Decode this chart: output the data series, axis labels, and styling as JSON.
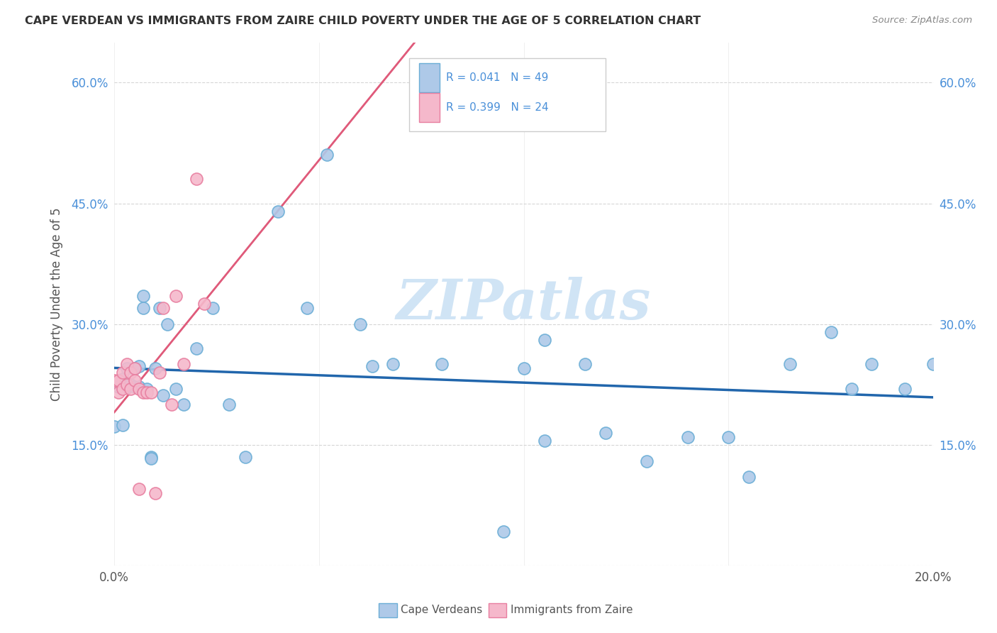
{
  "title": "CAPE VERDEAN VS IMMIGRANTS FROM ZAIRE CHILD POVERTY UNDER THE AGE OF 5 CORRELATION CHART",
  "source": "Source: ZipAtlas.com",
  "ylabel": "Child Poverty Under the Age of 5",
  "xlim": [
    0,
    0.2
  ],
  "ylim": [
    0,
    0.65
  ],
  "legend_label1": "Cape Verdeans",
  "legend_label2": "Immigrants from Zaire",
  "color_blue_face": "#aec9e8",
  "color_blue_edge": "#6baed6",
  "color_pink_face": "#f5b8cb",
  "color_pink_edge": "#e87fa0",
  "trendline_blue_color": "#2166ac",
  "trendline_pink_color": "#e05a7a",
  "trendline_dashed_color": "#d0b0c0",
  "watermark_color": "#d0e4f5",
  "blue_x": [
    0.0,
    0.001,
    0.002,
    0.002,
    0.003,
    0.003,
    0.004,
    0.005,
    0.005,
    0.006,
    0.006,
    0.007,
    0.007,
    0.008,
    0.009,
    0.009,
    0.01,
    0.011,
    0.012,
    0.013,
    0.015,
    0.017,
    0.02,
    0.024,
    0.028,
    0.032,
    0.04,
    0.047,
    0.052,
    0.06,
    0.063,
    0.068,
    0.08,
    0.095,
    0.1,
    0.105,
    0.115,
    0.14,
    0.15,
    0.155,
    0.165,
    0.175,
    0.18,
    0.185,
    0.193,
    0.2,
    0.105,
    0.12,
    0.13
  ],
  "blue_y": [
    0.173,
    0.222,
    0.232,
    0.175,
    0.245,
    0.222,
    0.225,
    0.245,
    0.222,
    0.248,
    0.222,
    0.335,
    0.32,
    0.22,
    0.135,
    0.133,
    0.245,
    0.32,
    0.212,
    0.3,
    0.22,
    0.2,
    0.27,
    0.32,
    0.2,
    0.135,
    0.44,
    0.32,
    0.51,
    0.3,
    0.248,
    0.25,
    0.25,
    0.042,
    0.245,
    0.28,
    0.25,
    0.16,
    0.16,
    0.11,
    0.25,
    0.29,
    0.22,
    0.25,
    0.22,
    0.25,
    0.155,
    0.165,
    0.13
  ],
  "pink_x": [
    0.0,
    0.001,
    0.001,
    0.002,
    0.002,
    0.003,
    0.003,
    0.004,
    0.004,
    0.005,
    0.005,
    0.006,
    0.006,
    0.007,
    0.008,
    0.009,
    0.01,
    0.011,
    0.012,
    0.014,
    0.015,
    0.017,
    0.02,
    0.022
  ],
  "pink_y": [
    0.23,
    0.215,
    0.23,
    0.24,
    0.22,
    0.25,
    0.225,
    0.24,
    0.22,
    0.245,
    0.23,
    0.22,
    0.095,
    0.215,
    0.215,
    0.215,
    0.09,
    0.24,
    0.32,
    0.2,
    0.335,
    0.25,
    0.48,
    0.325
  ]
}
